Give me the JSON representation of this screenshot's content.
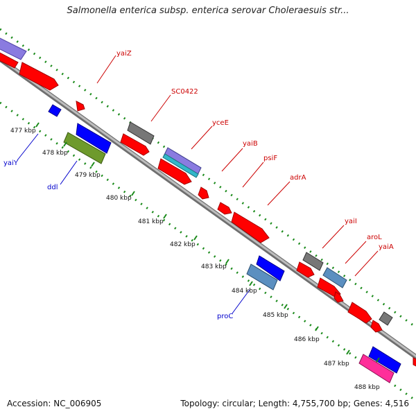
{
  "title": "Salmonella enterica subsp. enterica serovar Choleraesuis str...",
  "footer": {
    "accession": "Accession: NC_006905",
    "summary": "Topology: circular; Length: 4,755,700 bp; Genes: 4,516"
  },
  "colors": {
    "backbone": "#8c8c8c",
    "dots": "#1a8a1a",
    "forward_label": "#cc0000",
    "reverse_label": "#0000cc",
    "red": "#ff0000",
    "blue": "#0000ff",
    "gray": "#777777",
    "steelblue": "#5b8fc0",
    "olive": "#6e9a2c",
    "purple": "#8a7be0",
    "cyan": "#32b7c9",
    "magenta": "#ff2e9a"
  },
  "ticks": [
    "477 kbp",
    "478 kbp",
    "479 kbp",
    "480 kbp",
    "481 kbp",
    "482 kbp",
    "483 kbp",
    "484 kbp",
    "485 kbp",
    "486 kbp",
    "487 kbp",
    "488 kbp"
  ],
  "gene_labels": {
    "forward": [
      "yaiZ",
      "SC0422",
      "yceE",
      "yaiB",
      "psiF",
      "adrA",
      "yaiI",
      "aroL",
      "yaiA"
    ],
    "reverse": [
      "yaiY",
      "ddl",
      "proC"
    ]
  }
}
